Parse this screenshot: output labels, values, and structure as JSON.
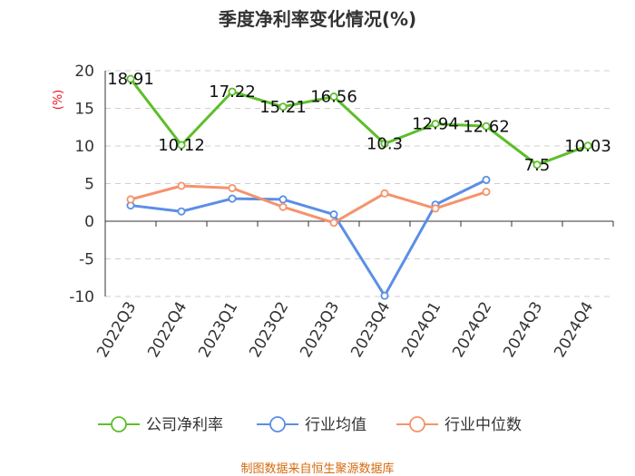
{
  "chart_data": {
    "type": "line",
    "title": "季度净利率变化情况(%)",
    "ylabel": "(%)",
    "categories": [
      "2022Q3",
      "2022Q4",
      "2023Q1",
      "2023Q2",
      "2023Q3",
      "2023Q4",
      "2024Q1",
      "2024Q2",
      "2024Q3",
      "2024Q4"
    ],
    "yticks": [
      "20",
      "15",
      "10",
      "5",
      "0",
      "-5",
      "-10"
    ],
    "ylim": [
      -10,
      20
    ],
    "grid": true,
    "legend_position": "bottom",
    "series": [
      {
        "name": "公司净利率",
        "color": "#5cbf2a",
        "values": [
          18.91,
          10.12,
          17.22,
          15.21,
          16.56,
          10.3,
          12.94,
          12.62,
          7.5,
          10.03
        ],
        "labels": [
          "18.91",
          "10.12",
          "17.22",
          "15.21",
          "16.56",
          "10.3",
          "12.94",
          "12.62",
          "7.5",
          "10.03"
        ]
      },
      {
        "name": "行业均值",
        "color": "#5b8ee6",
        "values": [
          2.1,
          1.3,
          3.0,
          2.9,
          0.9,
          -9.9,
          2.2,
          5.5,
          null,
          null
        ]
      },
      {
        "name": "行业中位数",
        "color": "#f4936b",
        "values": [
          2.9,
          4.7,
          4.4,
          1.9,
          -0.2,
          3.7,
          1.7,
          3.9,
          null,
          null
        ]
      }
    ]
  },
  "source_text": "制图数据来自恒生聚源数据库"
}
